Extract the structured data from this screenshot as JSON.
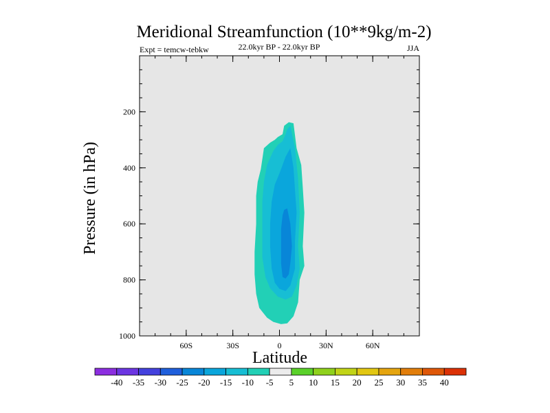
{
  "chart_data": {
    "type": "contour",
    "title": "Meridional Streamfunction (10**9kg/m-2)",
    "subtitle_left": "Expt = temcw-tebkw",
    "subtitle_center": "22.0kyr BP - 22.0kyr BP",
    "subtitle_right": "JJA",
    "xlabel": "Latitude",
    "ylabel": "Pressure (in hPa)",
    "xlim": [
      -90,
      90
    ],
    "ylim": [
      1000,
      0
    ],
    "x_ticks": [
      {
        "value": -60,
        "label": "60S"
      },
      {
        "value": -30,
        "label": "30S"
      },
      {
        "value": 0,
        "label": "0"
      },
      {
        "value": 30,
        "label": "30N"
      },
      {
        "value": 60,
        "label": "60N"
      }
    ],
    "y_ticks": [
      {
        "value": 200,
        "label": "200"
      },
      {
        "value": 400,
        "label": "400"
      },
      {
        "value": 600,
        "label": "600"
      },
      {
        "value": 800,
        "label": "800"
      },
      {
        "value": 1000,
        "label": "1000"
      }
    ],
    "background_color": "#e6e6e6",
    "contour_fills": [
      {
        "level": "-10 to -5",
        "color": "#22d0b6",
        "polygon": [
          [
            6,
            237
          ],
          [
            9,
            241
          ],
          [
            11,
            330
          ],
          [
            14,
            390
          ],
          [
            15,
            470
          ],
          [
            16,
            560
          ],
          [
            15,
            680
          ],
          [
            16,
            750
          ],
          [
            13,
            800
          ],
          [
            12,
            880
          ],
          [
            9,
            930
          ],
          [
            5,
            955
          ],
          [
            1,
            958
          ],
          [
            -4,
            950
          ],
          [
            -8,
            935
          ],
          [
            -13,
            900
          ],
          [
            -15,
            850
          ],
          [
            -16,
            780
          ],
          [
            -16,
            700
          ],
          [
            -15,
            600
          ],
          [
            -15,
            500
          ],
          [
            -14,
            450
          ],
          [
            -12,
            405
          ],
          [
            -10,
            330
          ],
          [
            -6,
            310
          ],
          [
            -3,
            300
          ],
          [
            -1,
            290
          ],
          [
            2,
            280
          ],
          [
            3,
            250
          ]
        ]
      },
      {
        "level": "-15 to -10",
        "color": "#17bed4",
        "polygon": [
          [
            7,
            250
          ],
          [
            10,
            330
          ],
          [
            12,
            440
          ],
          [
            13,
            560
          ],
          [
            12,
            680
          ],
          [
            13,
            760
          ],
          [
            11,
            820
          ],
          [
            8,
            860
          ],
          [
            4,
            870
          ],
          [
            -1,
            860
          ],
          [
            -6,
            830
          ],
          [
            -9,
            790
          ],
          [
            -11,
            720
          ],
          [
            -11,
            620
          ],
          [
            -11,
            520
          ],
          [
            -10,
            450
          ],
          [
            -8,
            390
          ],
          [
            -4,
            340
          ],
          [
            -1,
            318
          ],
          [
            2,
            305
          ],
          [
            4,
            280
          ],
          [
            5,
            262
          ]
        ]
      },
      {
        "level": "-20 to -15",
        "color": "#0aa6dc",
        "polygon": [
          [
            7,
            330
          ],
          [
            9,
            400
          ],
          [
            10,
            480
          ],
          [
            11,
            560
          ],
          [
            10,
            660
          ],
          [
            10,
            760
          ],
          [
            7,
            820
          ],
          [
            4,
            840
          ],
          [
            0,
            832
          ],
          [
            -3,
            810
          ],
          [
            -5,
            760
          ],
          [
            -6,
            680
          ],
          [
            -6,
            600
          ],
          [
            -5,
            520
          ],
          [
            -3,
            460
          ],
          [
            0,
            420
          ],
          [
            2,
            390
          ],
          [
            4,
            360
          ]
        ]
      },
      {
        "level": "-25 to -20",
        "color": "#0886d8",
        "polygon": [
          [
            5,
            545
          ],
          [
            7,
            600
          ],
          [
            8,
            680
          ],
          [
            7,
            740
          ],
          [
            6,
            780
          ],
          [
            4,
            795
          ],
          [
            2,
            790
          ],
          [
            1,
            740
          ],
          [
            1,
            680
          ],
          [
            1,
            620
          ],
          [
            2,
            570
          ],
          [
            3,
            550
          ]
        ]
      }
    ],
    "colorbar": {
      "labels": [
        "-40",
        "-35",
        "-30",
        "-25",
        "-20",
        "-15",
        "-10",
        "-5",
        "5",
        "10",
        "15",
        "20",
        "25",
        "30",
        "35",
        "40"
      ],
      "colors": [
        "#8c2ee0",
        "#6c35e2",
        "#4441de",
        "#1f5fdc",
        "#0886d8",
        "#0aa6dc",
        "#17bed4",
        "#22d0b6",
        "#ececec",
        "#5ad12a",
        "#8fd11c",
        "#c1d417",
        "#e2c712",
        "#e5a50f",
        "#e27e0b",
        "#df5708",
        "#dc3106"
      ]
    }
  }
}
